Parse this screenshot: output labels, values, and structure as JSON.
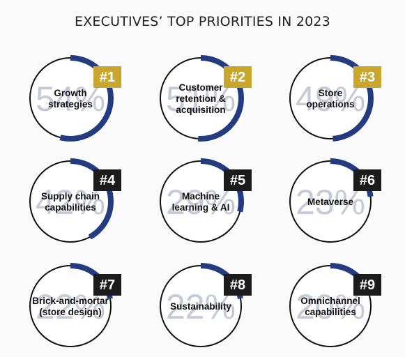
{
  "title": "EXECUTIVES’ TOP PRIORITIES IN 2023",
  "colors": {
    "ring": "#243b7f",
    "badge_gold": "#c9a72c",
    "badge_black": "#1c1c1c",
    "percent_text": "#c4cad8"
  },
  "chart_data": {
    "type": "donut-grid",
    "items": [
      {
        "rank": "#1",
        "label": [
          "Growth",
          "strategies"
        ],
        "value": 54,
        "percent": "54%",
        "badge": "gold"
      },
      {
        "rank": "#2",
        "label": [
          "Customer",
          "retention &",
          "acquisition"
        ],
        "value": 51,
        "percent": "51%",
        "badge": "gold"
      },
      {
        "rank": "#3",
        "label": [
          "Store",
          "operations"
        ],
        "value": 49,
        "percent": "49%",
        "badge": "gold"
      },
      {
        "rank": "#4",
        "label": [
          "Supply chain",
          "capabilities"
        ],
        "value": 42,
        "percent": "42%",
        "badge": "black"
      },
      {
        "rank": "#5",
        "label": [
          "Machine",
          "learning & AI"
        ],
        "value": 29,
        "percent": "29%",
        "badge": "black"
      },
      {
        "rank": "#6",
        "label": [
          "Metaverse"
        ],
        "value": 23,
        "percent": "23%",
        "badge": "black"
      },
      {
        "rank": "#7",
        "label": [
          "Brick-and-mortar",
          "(store design)"
        ],
        "value": 22,
        "percent": "22%",
        "badge": "black"
      },
      {
        "rank": "#8",
        "label": [
          "Sustainability"
        ],
        "value": 22,
        "percent": "22%",
        "badge": "black"
      },
      {
        "rank": "#9",
        "label": [
          "Omnichannel",
          "capabilities"
        ],
        "value": 20,
        "percent": "20%",
        "badge": "black"
      }
    ]
  }
}
